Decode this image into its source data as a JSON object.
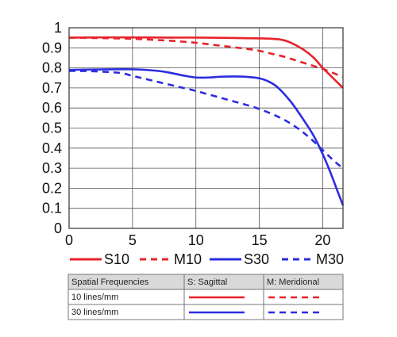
{
  "chart_data": {
    "type": "line",
    "title": "",
    "xlabel": "",
    "ylabel": "",
    "xlim": [
      0,
      21.6
    ],
    "ylim": [
      0,
      1
    ],
    "x_ticks": [
      "0",
      "5",
      "10",
      "15",
      "20"
    ],
    "y_ticks": [
      "0",
      "0.1",
      "0.2",
      "0.3",
      "0.4",
      "0.5",
      "0.6",
      "0.7",
      "0.8",
      "0.9",
      "1"
    ],
    "grid": true,
    "legend_position": "bottom",
    "series": [
      {
        "name": "S10",
        "color": "#e8232a",
        "dash": false,
        "x": [
          0,
          2,
          5,
          8,
          10,
          12,
          14,
          15,
          16,
          16.8,
          17.5,
          18.5,
          19.3,
          20,
          20.8,
          21.6
        ],
        "y": [
          0.951,
          0.952,
          0.952,
          0.951,
          0.951,
          0.95,
          0.948,
          0.947,
          0.945,
          0.94,
          0.925,
          0.89,
          0.85,
          0.8,
          0.75,
          0.7
        ]
      },
      {
        "name": "M10",
        "color": "#e8232a",
        "dash": true,
        "x": [
          0,
          2,
          5,
          8,
          10,
          12,
          14,
          15,
          16,
          17,
          18,
          19,
          20,
          21,
          21.6
        ],
        "y": [
          0.951,
          0.949,
          0.945,
          0.935,
          0.925,
          0.91,
          0.895,
          0.885,
          0.87,
          0.855,
          0.835,
          0.815,
          0.795,
          0.77,
          0.755
        ]
      },
      {
        "name": "S30",
        "color": "#2b2de0",
        "dash": false,
        "x": [
          0,
          2,
          5,
          7,
          8,
          9,
          10,
          11,
          12,
          13,
          14,
          15,
          15.8,
          16.5,
          17.5,
          18.5,
          19.3,
          20,
          20.6,
          21.2,
          21.6
        ],
        "y": [
          0.79,
          0.792,
          0.793,
          0.785,
          0.775,
          0.762,
          0.752,
          0.752,
          0.756,
          0.757,
          0.755,
          0.748,
          0.73,
          0.7,
          0.63,
          0.54,
          0.46,
          0.37,
          0.28,
          0.18,
          0.115
        ]
      },
      {
        "name": "M30",
        "color": "#2b2de0",
        "dash": true,
        "x": [
          0,
          2,
          4,
          5,
          7,
          9,
          10,
          12,
          14,
          15,
          16,
          17,
          18,
          19,
          20,
          21,
          21.6
        ],
        "y": [
          0.785,
          0.783,
          0.775,
          0.76,
          0.73,
          0.7,
          0.685,
          0.65,
          0.615,
          0.595,
          0.57,
          0.54,
          0.5,
          0.45,
          0.39,
          0.33,
          0.3
        ]
      }
    ]
  },
  "table": {
    "headers": [
      "Spatial Frequencies",
      "S: Sagittal",
      "M: Meridional"
    ],
    "rows": [
      {
        "label": "10 lines/mm",
        "color": "#e8232a"
      },
      {
        "label": "30 lines/mm",
        "color": "#2b2de0"
      }
    ]
  }
}
